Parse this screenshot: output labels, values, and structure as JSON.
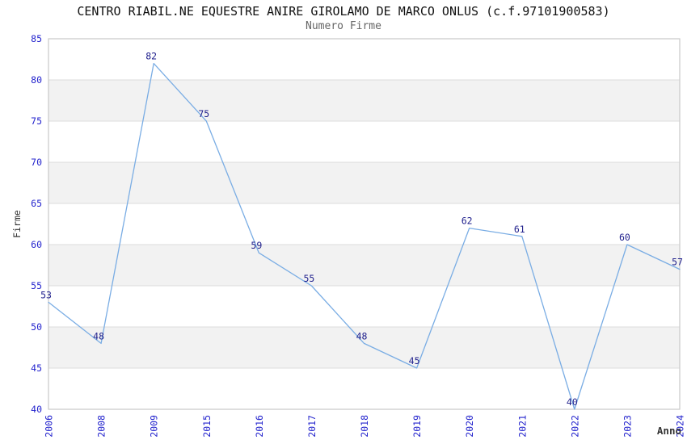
{
  "header": {
    "title": "CENTRO RIABIL.NE EQUESTRE ANIRE GIROLAMO DE MARCO ONLUS (c.f.97101900583)",
    "subtitle": "Numero Firme"
  },
  "chart_data": {
    "type": "line",
    "title": "CENTRO RIABIL.NE EQUESTRE ANIRE GIROLAMO DE MARCO ONLUS (c.f.97101900583)",
    "subtitle": "Numero Firme",
    "xlabel": "Anno",
    "ylabel": "Firme",
    "categories": [
      "2006",
      "2008",
      "2009",
      "2015",
      "2016",
      "2017",
      "2018",
      "2019",
      "2020",
      "2021",
      "2022",
      "2023",
      "2024"
    ],
    "values": [
      53,
      48,
      82,
      75,
      59,
      55,
      48,
      45,
      62,
      61,
      40,
      60,
      57
    ],
    "ylim": [
      40,
      85
    ],
    "ytick_step": 5,
    "yticks": [
      40,
      45,
      50,
      55,
      60,
      65,
      70,
      75,
      80,
      85
    ],
    "grid": "horizontal",
    "background_bands": "alternating gray every 5 units",
    "legend": "none",
    "data_labels": true,
    "colors": {
      "line": "#7aade4",
      "data_label": "#1f1f8c",
      "tick_label": "#2323cd",
      "band": "#f2f2f2",
      "grid": "#dcdcdc",
      "border": "#c9c9c9",
      "title": "#111111",
      "subtitle": "#666666",
      "axis_label": "#333333"
    }
  }
}
